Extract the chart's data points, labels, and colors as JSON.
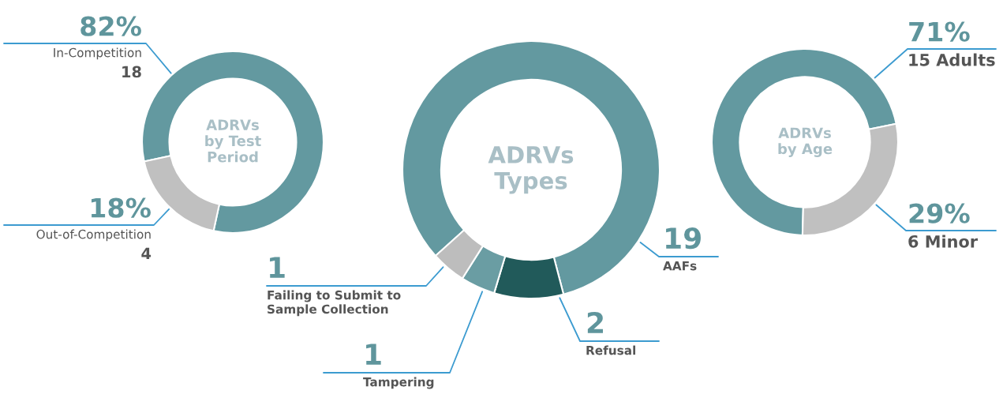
{
  "chart_data": [
    {
      "type": "donut",
      "title": "ADRVs\nby Test\nPeriod",
      "categories": [
        "In-Competition",
        "Out-of-Competition"
      ],
      "values": [
        18,
        4
      ],
      "colors": [
        "#6399a0",
        "#c0c0c0"
      ],
      "data_labels": true,
      "annotations": [
        "82%",
        "18%"
      ]
    },
    {
      "type": "donut",
      "title": "ADRVs\nTypes",
      "categories": [
        "AAFs",
        "Refusal",
        "Tampering",
        "Failing to Submit to\nSample Collection"
      ],
      "values": [
        19,
        2,
        1,
        1
      ],
      "colors": [
        "#6399a0",
        "#215a5a",
        "#6a9da3",
        "#bdbdbd"
      ],
      "data_labels": true
    },
    {
      "type": "donut",
      "title": "ADRVs\nby Age",
      "categories": [
        null,
        null
      ],
      "values": [
        15,
        6
      ],
      "colors": [
        "#6399a0",
        "#c0c0c0"
      ],
      "value_labels": [
        "15 Adults",
        "6 Minor"
      ],
      "annotations": [
        "71%",
        "29%"
      ]
    }
  ]
}
